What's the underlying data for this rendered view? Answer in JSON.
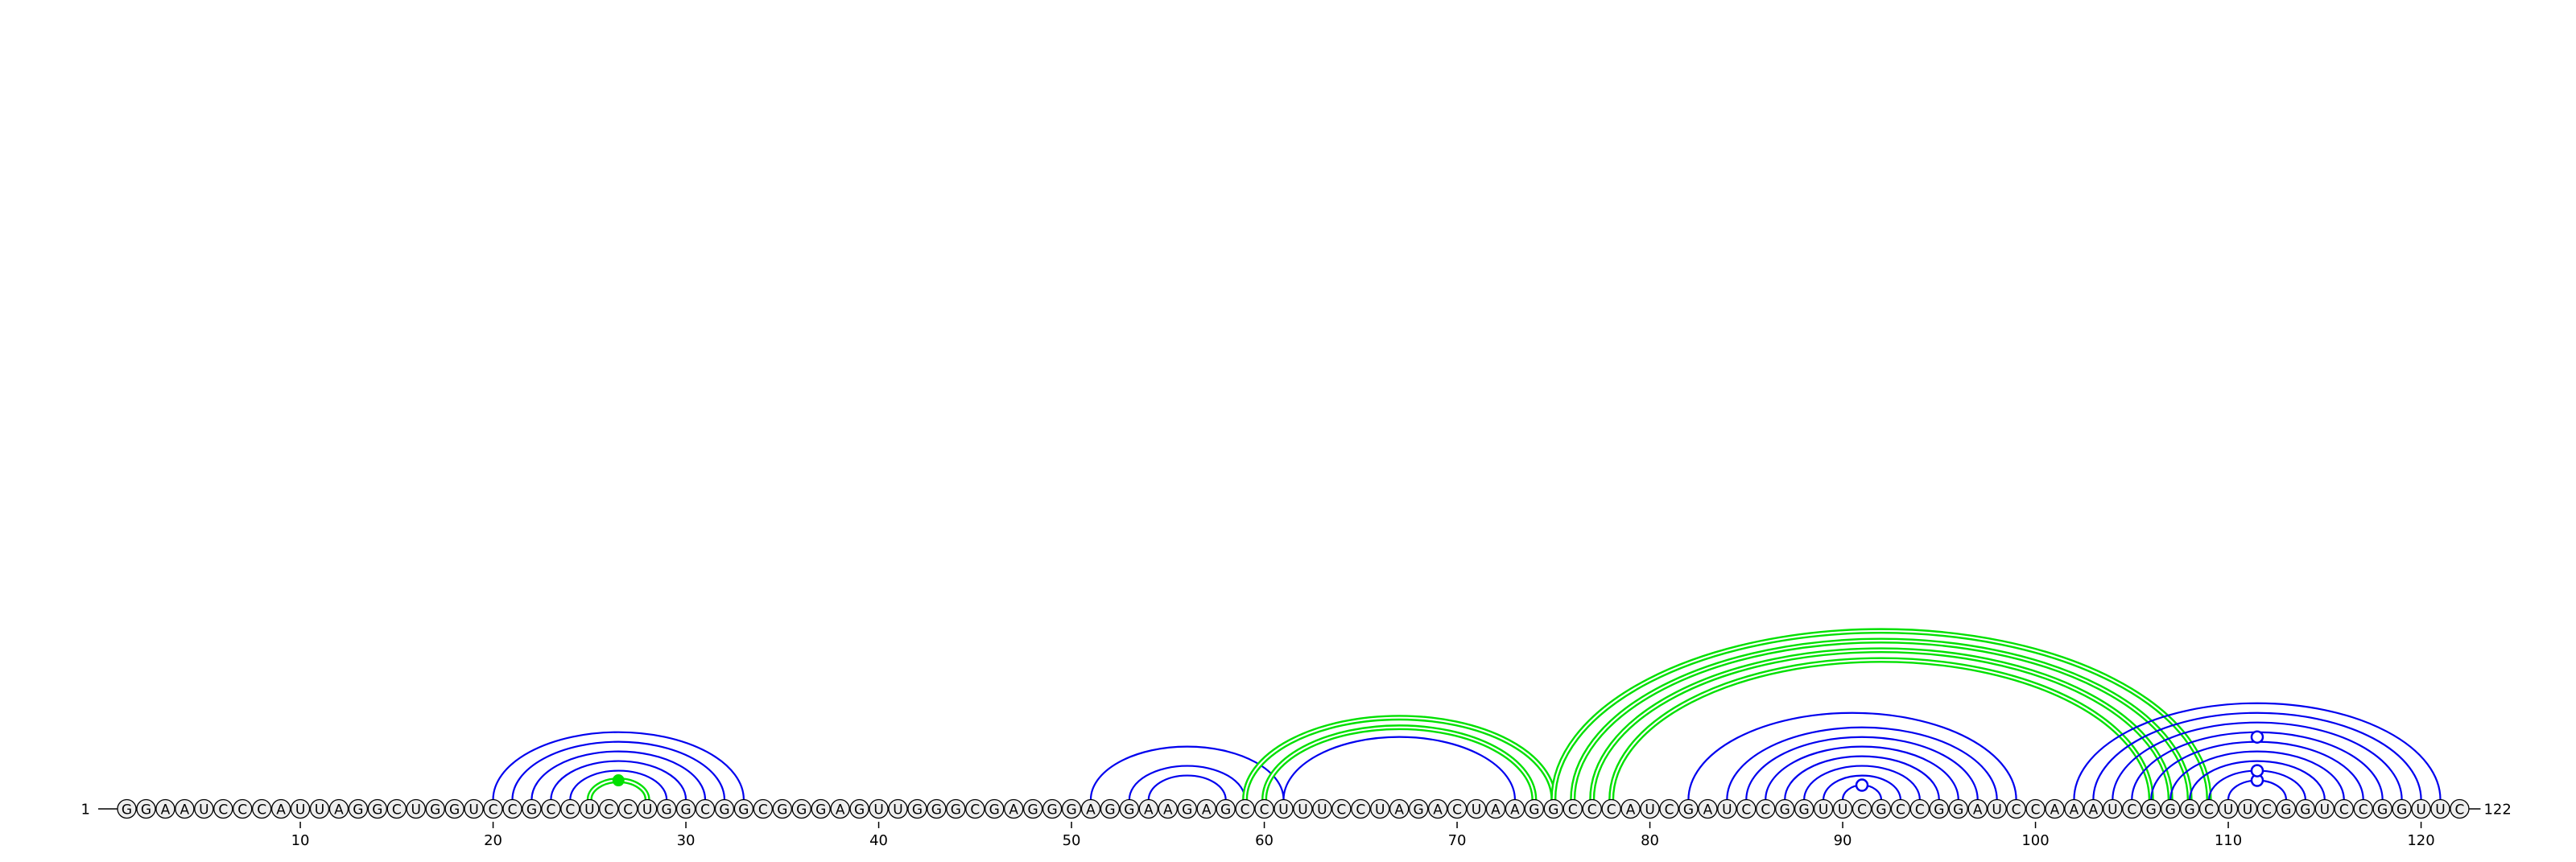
{
  "sequence": "GGAAUCCCAUUAGGCUGGUCCGCCUCCUGGCGGCGGGAGUUGGGCGAGGGAGGAAGAGCCUUUCCUAGACUAAGGCCCAUCGAUCCGGUUCGCCGGAUCCAAAUCGGGCUUCGGUCCGGUUC",
  "start_label": "1",
  "end_label": "122",
  "ticks": [
    10,
    20,
    30,
    40,
    50,
    60,
    70,
    80,
    90,
    100,
    110,
    120
  ],
  "colors": {
    "single_arc": "#0000ee",
    "double_arc": "#00e000",
    "circle_fill": "#eeeeee",
    "circle_stroke": "#000000",
    "text": "#000000"
  },
  "arc_groups": [
    {
      "style": "double",
      "pairs": [
        [
          25,
          28
        ]
      ],
      "marker": "filled"
    },
    {
      "style": "single",
      "pairs": [
        [
          24,
          29
        ],
        [
          23,
          30
        ],
        [
          22,
          31
        ],
        [
          21,
          32
        ],
        [
          20,
          33
        ]
      ]
    },
    {
      "style": "single",
      "pairs": [
        [
          51,
          61
        ],
        [
          53,
          59
        ],
        [
          54,
          58
        ]
      ]
    },
    {
      "style": "double",
      "pairs": [
        [
          59,
          75
        ],
        [
          60,
          74
        ]
      ]
    },
    {
      "style": "single",
      "pairs": [
        [
          61,
          73
        ]
      ]
    },
    {
      "style": "double",
      "pairs": [
        [
          75,
          109
        ],
        [
          76,
          108
        ],
        [
          77,
          107
        ],
        [
          78,
          106
        ]
      ]
    },
    {
      "style": "single",
      "pairs": [
        [
          82,
          99
        ],
        [
          84,
          98
        ],
        [
          85,
          97
        ],
        [
          86,
          96
        ],
        [
          87,
          95
        ],
        [
          88,
          94
        ],
        [
          89,
          93
        ]
      ]
    },
    {
      "style": "single",
      "pairs": [
        [
          90,
          92
        ]
      ],
      "marker": "open"
    },
    {
      "style": "single",
      "pairs": [
        [
          102,
          121
        ],
        [
          103,
          120
        ],
        [
          104,
          119
        ],
        [
          105,
          118
        ],
        [
          106,
          117
        ],
        [
          107,
          116
        ],
        [
          108,
          115
        ]
      ]
    },
    {
      "style": "single",
      "pairs": [
        [
          110,
          113
        ]
      ],
      "marker": "open"
    },
    {
      "style": "single",
      "pairs": [
        [
          109,
          114
        ]
      ],
      "marker": "open"
    },
    {
      "style": "single",
      "pairs": [
        [
          103,
          120
        ]
      ],
      "marker": "open_top"
    }
  ]
}
